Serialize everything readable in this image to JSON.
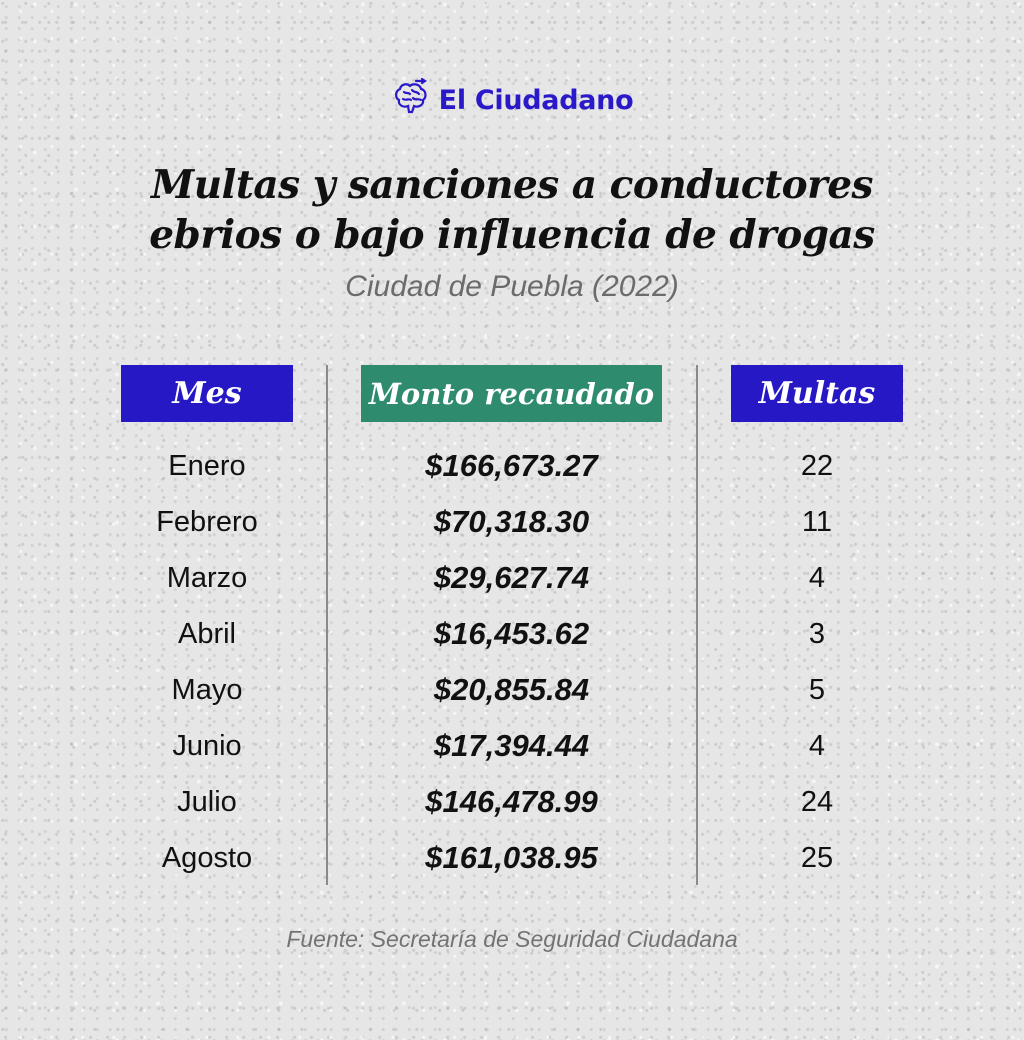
{
  "brand": {
    "name": "El Ciudadano",
    "color": "#2a19c9",
    "icon": "brain-icon"
  },
  "title_line1": "Multas y sanciones a conductores",
  "title_line2": "ebrios o bajo influencia de drogas",
  "subtitle": "Ciudad de Puebla (2022)",
  "headers": {
    "mes": "Mes",
    "monto": "Monto recaudado",
    "multas": "Multas"
  },
  "colors": {
    "header_blue": "#2618c4",
    "header_green": "#2e8b6e"
  },
  "source": "Fuente: Secretaría de Seguridad Ciudadana",
  "chart_data": {
    "type": "table",
    "columns": [
      "Mes",
      "Monto recaudado",
      "Multas"
    ],
    "rows": [
      {
        "mes": "Enero",
        "monto": "$166,673.27",
        "multas": "22"
      },
      {
        "mes": "Febrero",
        "monto": "$70,318.30",
        "multas": "11"
      },
      {
        "mes": "Marzo",
        "monto": "$29,627.74",
        "multas": "4"
      },
      {
        "mes": "Abril",
        "monto": "$16,453.62",
        "multas": "3"
      },
      {
        "mes": "Mayo",
        "monto": "$20,855.84",
        "multas": "5"
      },
      {
        "mes": "Junio",
        "monto": "$17,394.44",
        "multas": "4"
      },
      {
        "mes": "Julio",
        "monto": "$146,478.99",
        "multas": "24"
      },
      {
        "mes": "Agosto",
        "monto": "$161,038.95",
        "multas": "25"
      }
    ]
  }
}
